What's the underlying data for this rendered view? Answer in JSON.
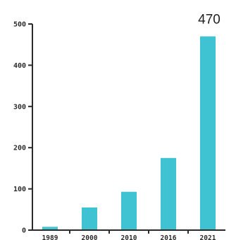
{
  "chart_data": {
    "type": "bar",
    "categories": [
      "1989",
      "2000",
      "2010",
      "2016",
      "2021"
    ],
    "values": [
      8,
      55,
      93,
      175,
      470
    ],
    "data_labels": [
      "",
      "",
      "",
      "",
      "470"
    ],
    "yticks": [
      0,
      100,
      200,
      300,
      400,
      500
    ],
    "ytick_labels": [
      "0",
      "100",
      "200",
      "300",
      "400",
      "500"
    ],
    "ylim": [
      0,
      500
    ],
    "bar_color": "#3fc3d2",
    "axis_color": "#2b2b2b",
    "grid": false,
    "legend": "none",
    "title": "",
    "xlabel": "",
    "ylabel": ""
  }
}
